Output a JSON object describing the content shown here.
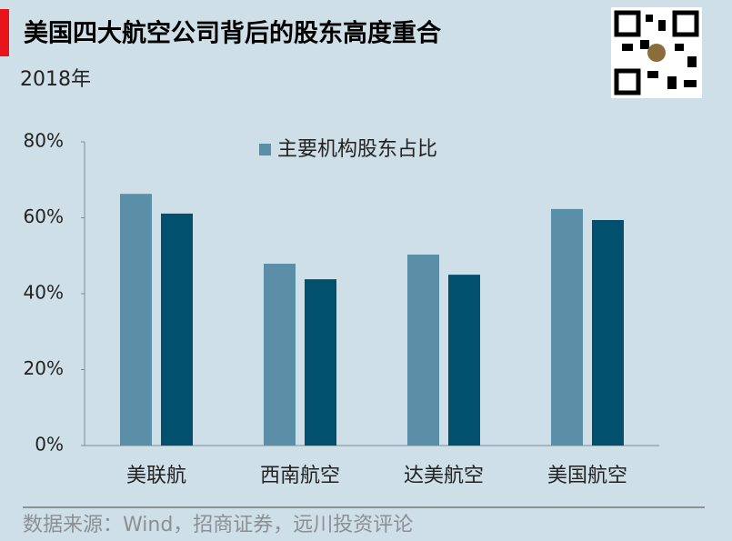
{
  "chart_data": {
    "type": "bar",
    "title": "美国四大航空公司背后的股东高度重合",
    "subtitle": "2018年",
    "source": "数据来源：Wind，招商证券，远川投资评论",
    "categories": [
      "美联航",
      "西南航空",
      "达美航空",
      "美国航空"
    ],
    "series": [
      {
        "name": "主要机构股东占比",
        "color": "#5b8fa8",
        "values": [
          66.3,
          47.9,
          50.3,
          62.3
        ]
      },
      {
        "color": "#00506e",
        "values": [
          61.1,
          43.8,
          45.0,
          59.4
        ]
      }
    ],
    "ylim": [
      0,
      80
    ],
    "yticks": [
      {
        "value": 0,
        "label": "0%"
      },
      {
        "value": 20,
        "label": "20%"
      },
      {
        "value": 40,
        "label": "40%"
      },
      {
        "value": 60,
        "label": "60%"
      },
      {
        "value": 80,
        "label": "80%"
      }
    ],
    "grid": false
  }
}
